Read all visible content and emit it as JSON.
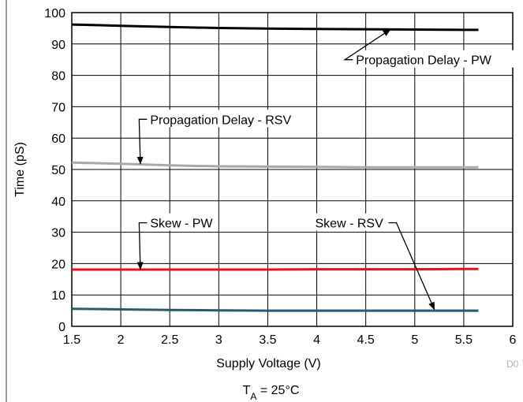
{
  "chart_data": {
    "type": "line",
    "xlabel": "Supply Voltage (V)",
    "ylabel": "Time (pS)",
    "xlim": [
      1.5,
      6
    ],
    "ylim": [
      0,
      100
    ],
    "xticks": [
      "1.5",
      "2",
      "2.5",
      "3",
      "3.5",
      "4",
      "4.5",
      "5",
      "5.5",
      "6"
    ],
    "yticks": [
      "0",
      "10",
      "20",
      "30",
      "40",
      "50",
      "60",
      "70",
      "80",
      "90",
      "100"
    ],
    "grid": true,
    "series": [
      {
        "name": "Propagation Delay - PW",
        "color": "#000000",
        "x": [
          1.5,
          2.0,
          2.5,
          3.0,
          3.5,
          4.0,
          4.5,
          5.0,
          5.5,
          5.65
        ],
        "y": [
          96.2,
          95.8,
          95.4,
          95.1,
          94.9,
          94.8,
          94.7,
          94.6,
          94.5,
          94.5
        ]
      },
      {
        "name": "Propagation Delay - RSV",
        "color": "#a8a8a8",
        "x": [
          1.5,
          2.0,
          2.5,
          3.0,
          3.5,
          4.0,
          4.5,
          5.0,
          5.5,
          5.65
        ],
        "y": [
          52.2,
          51.8,
          51.3,
          51.0,
          50.9,
          50.8,
          50.7,
          50.7,
          50.7,
          50.7
        ]
      },
      {
        "name": "Skew - PW",
        "color": "#e8101a",
        "x": [
          1.5,
          2.0,
          2.5,
          3.0,
          3.5,
          4.0,
          4.5,
          5.0,
          5.5,
          5.65
        ],
        "y": [
          18.1,
          18.1,
          18.1,
          18.1,
          18.1,
          18.2,
          18.2,
          18.2,
          18.3,
          18.3
        ]
      },
      {
        "name": "Skew - RSV",
        "color": "#2b5a6e",
        "x": [
          1.5,
          2.0,
          2.5,
          3.0,
          3.5,
          4.0,
          4.5,
          5.0,
          5.5,
          5.65
        ],
        "y": [
          5.6,
          5.4,
          5.2,
          5.1,
          5.0,
          5.0,
          5.0,
          5.0,
          5.0,
          5.0
        ]
      }
    ],
    "annotations": [
      {
        "text": "Propagation Delay - PW",
        "tail_x": 4.4,
        "tail_y": 85,
        "target_x": 4.75,
        "target_y": 94.6,
        "anchor": "left"
      },
      {
        "text": "Propagation Delay - RSV",
        "tail_x": 2.3,
        "tail_y": 66,
        "target_x": 2.2,
        "target_y": 51.8,
        "anchor": "left"
      },
      {
        "text": "Skew - PW",
        "tail_x": 2.3,
        "tail_y": 33,
        "target_x": 2.2,
        "target_y": 18.2,
        "anchor": "left"
      },
      {
        "text": "Skew - RSV",
        "tail_x": 4.7,
        "tail_y": 33,
        "target_x": 5.2,
        "target_y": 5.4,
        "anchor": "right"
      }
    ],
    "footnote_prefix": "T",
    "footnote_subscript": "A",
    "footnote_rest": " = 25°C",
    "doc_id": "D0"
  }
}
